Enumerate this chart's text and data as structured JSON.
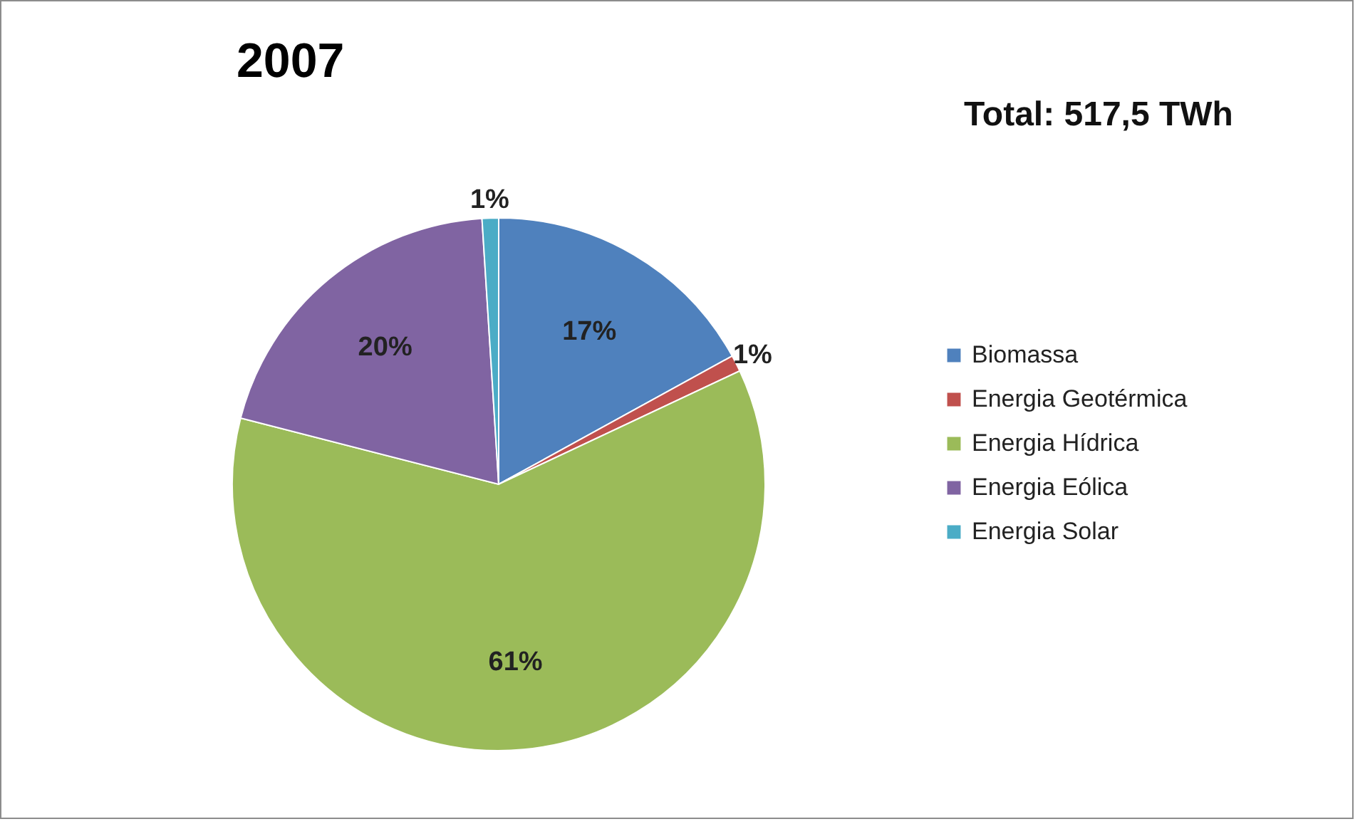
{
  "chart_data": {
    "type": "pie",
    "title": "2007",
    "annotations": [
      "Total: 517,5 TWh"
    ],
    "categories": [
      "Biomassa",
      "Energia Geotérmica",
      "Energia Hídrica",
      "Energia Eólica",
      "Energia Solar"
    ],
    "values": [
      17,
      1,
      61,
      20,
      1
    ],
    "colors": [
      "#4f81bd",
      "#c0504d",
      "#9bbb59",
      "#8064a2",
      "#4bacc6"
    ],
    "value_labels": [
      "17%",
      "1%",
      "61%",
      "20%",
      "1%"
    ],
    "legend": "right"
  }
}
